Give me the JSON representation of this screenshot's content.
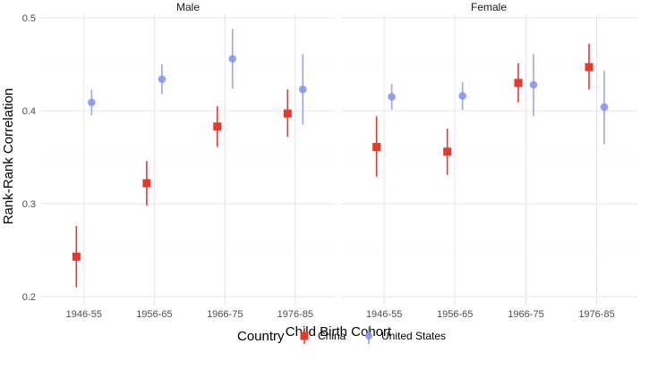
{
  "chart_data": {
    "type": "scatter",
    "subtype": "point-range (faceted)",
    "xlabel": "Child Birth Cohort",
    "ylabel": "Rank-Rank Correlation",
    "ylim": [
      0.2,
      0.5
    ],
    "yticks": [
      0.2,
      0.3,
      0.4,
      0.5
    ],
    "ytick_labels": [
      "0.2",
      "0.3",
      "0.4",
      "0.5"
    ],
    "categories": [
      "1946-55",
      "1956-65",
      "1966-75",
      "1976-85"
    ],
    "grid": true,
    "legend": {
      "title": "Country",
      "placement": "bottom",
      "entries": [
        "China",
        "United States"
      ]
    },
    "colors": {
      "China": "#e8382c",
      "United States": "#8a96f0"
    },
    "panels": [
      {
        "label": "Male",
        "series": [
          {
            "name": "China",
            "marker": "square",
            "values": [
              0.243,
              0.322,
              0.383,
              0.397
            ],
            "lower": [
              0.21,
              0.298,
              0.361,
              0.372
            ],
            "upper": [
              0.276,
              0.346,
              0.405,
              0.423
            ]
          },
          {
            "name": "United States",
            "marker": "circle",
            "values": [
              0.409,
              0.434,
              0.456,
              0.423
            ],
            "lower": [
              0.395,
              0.418,
              0.424,
              0.385
            ],
            "upper": [
              0.423,
              0.45,
              0.488,
              0.461
            ]
          }
        ]
      },
      {
        "label": "Female",
        "series": [
          {
            "name": "China",
            "marker": "square",
            "values": [
              0.361,
              0.356,
              0.43,
              0.447
            ],
            "lower": [
              0.329,
              0.331,
              0.409,
              0.423
            ],
            "upper": [
              0.394,
              0.381,
              0.451,
              0.472
            ]
          },
          {
            "name": "United States",
            "marker": "circle",
            "values": [
              0.415,
              0.416,
              0.428,
              0.404
            ],
            "lower": [
              0.401,
              0.401,
              0.394,
              0.364
            ],
            "upper": [
              0.429,
              0.431,
              0.461,
              0.443
            ]
          }
        ]
      }
    ]
  }
}
